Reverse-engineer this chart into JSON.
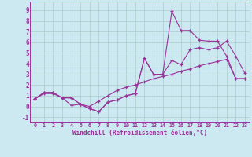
{
  "xlabel": "Windchill (Refroidissement éolien,°C)",
  "x_values": [
    0,
    1,
    2,
    3,
    4,
    5,
    6,
    7,
    8,
    9,
    10,
    11,
    12,
    13,
    14,
    15,
    16,
    17,
    18,
    19,
    20,
    21,
    22,
    23
  ],
  "line1_y": [
    0.7,
    1.3,
    1.3,
    0.8,
    0.8,
    0.2,
    -0.2,
    -0.5,
    0.4,
    0.6,
    1.0,
    1.2,
    4.5,
    3.0,
    3.0,
    4.3,
    3.9,
    5.3,
    5.5,
    5.3,
    5.5,
    6.1,
    4.7,
    3.1
  ],
  "line2_y": [
    0.7,
    1.3,
    1.3,
    0.8,
    0.8,
    0.2,
    -0.2,
    -0.5,
    0.4,
    0.6,
    1.0,
    1.2,
    4.5,
    3.0,
    3.0,
    8.9,
    7.1,
    7.1,
    6.2,
    6.1,
    6.1,
    4.7,
    2.6,
    2.6
  ],
  "line3_y": [
    0.7,
    1.2,
    1.2,
    0.8,
    0.1,
    0.2,
    0.0,
    0.5,
    1.0,
    1.5,
    1.8,
    2.0,
    2.3,
    2.6,
    2.8,
    3.0,
    3.3,
    3.5,
    3.8,
    4.0,
    4.2,
    4.4,
    2.6,
    2.6
  ],
  "color": "#993399",
  "bg_color": "#cce8f0",
  "grid_color": "#aacccc",
  "ylim": [
    -1.5,
    9.8
  ],
  "xlim": [
    -0.5,
    23.5
  ],
  "yticks": [
    -1,
    0,
    1,
    2,
    3,
    4,
    5,
    6,
    7,
    8,
    9
  ],
  "xticks": [
    0,
    1,
    2,
    3,
    4,
    5,
    6,
    7,
    8,
    9,
    10,
    11,
    12,
    13,
    14,
    15,
    16,
    17,
    18,
    19,
    20,
    21,
    22,
    23
  ]
}
